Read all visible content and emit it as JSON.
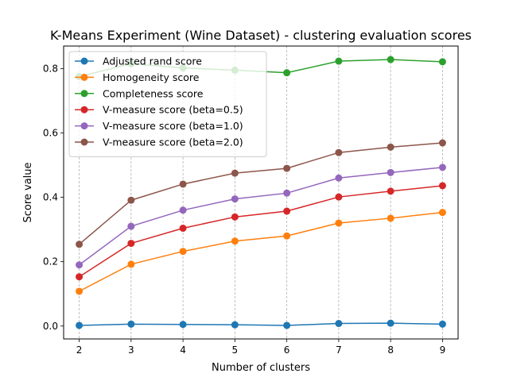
{
  "chart_data": {
    "type": "line",
    "title": "K-Means Experiment (Wine Dataset) - clustering evaluation scores",
    "xlabel": "Number of clusters",
    "ylabel": "Score value",
    "x": [
      2,
      3,
      4,
      5,
      6,
      7,
      8,
      9
    ],
    "xlim": [
      1.7,
      9.3
    ],
    "ylim": [
      -0.04,
      0.87
    ],
    "xticks": [
      "2",
      "3",
      "4",
      "5",
      "6",
      "7",
      "8",
      "9"
    ],
    "yticks": [
      "0.0",
      "0.2",
      "0.4",
      "0.6",
      "0.8"
    ],
    "grid": "vertical dashed",
    "legend_position": "upper-left",
    "series": [
      {
        "name": "Adjusted rand score",
        "color": "#1f77b4",
        "values": [
          0.002,
          0.006,
          0.005,
          0.004,
          0.002,
          0.008,
          0.009,
          0.006
        ]
      },
      {
        "name": "Homogeneity score",
        "color": "#ff7f0e",
        "values": [
          0.108,
          0.192,
          0.232,
          0.264,
          0.28,
          0.32,
          0.335,
          0.353
        ]
      },
      {
        "name": "Completeness score",
        "color": "#2ca02c",
        "values": [
          0.775,
          0.815,
          0.802,
          0.795,
          0.787,
          0.823,
          0.828,
          0.821
        ]
      },
      {
        "name": "V-measure score (beta=0.5)",
        "color": "#d62728",
        "values": [
          0.153,
          0.257,
          0.304,
          0.339,
          0.357,
          0.401,
          0.419,
          0.436
        ]
      },
      {
        "name": "V-measure score (beta=1.0)",
        "color": "#9467bd",
        "values": [
          0.19,
          0.31,
          0.36,
          0.395,
          0.413,
          0.46,
          0.477,
          0.493
        ]
      },
      {
        "name": "V-measure score (beta=2.0)",
        "color": "#8c564b",
        "values": [
          0.254,
          0.391,
          0.441,
          0.475,
          0.49,
          0.539,
          0.556,
          0.569
        ]
      }
    ]
  }
}
